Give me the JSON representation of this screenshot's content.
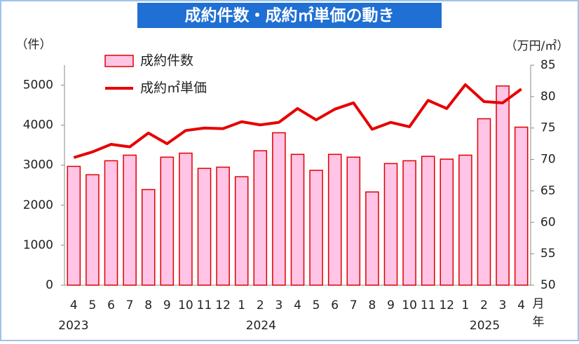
{
  "chart_data": {
    "type": "bar",
    "title": "成約件数・成約㎡単価の動き",
    "y_label": "（件）",
    "y2_label": "（万円/㎡）",
    "x_label_month": "月",
    "x_label_year": "年",
    "categories": [
      "4",
      "5",
      "6",
      "7",
      "8",
      "9",
      "10",
      "11",
      "12",
      "1",
      "2",
      "3",
      "4",
      "5",
      "6",
      "7",
      "8",
      "9",
      "10",
      "11",
      "12",
      "1",
      "2",
      "3",
      "4"
    ],
    "years": [
      "2023",
      null,
      null,
      null,
      null,
      null,
      null,
      null,
      null,
      "2024",
      null,
      null,
      null,
      null,
      null,
      null,
      null,
      null,
      null,
      null,
      null,
      "2025",
      null,
      null,
      null
    ],
    "series": [
      {
        "name": "成約件数",
        "type": "bar",
        "color": "#ffc4e6",
        "edge_color": "#e00000",
        "values": [
          2970,
          2760,
          3110,
          3250,
          2390,
          3200,
          3300,
          2920,
          2950,
          2710,
          3360,
          3810,
          3270,
          2870,
          3270,
          3200,
          2330,
          3040,
          3110,
          3220,
          3150,
          3250,
          4160,
          4980,
          3950
        ]
      },
      {
        "name": "成約㎡単価",
        "type": "line",
        "axis": "y2",
        "color": "#e60000",
        "values": [
          70.3,
          71.2,
          72.4,
          72.0,
          74.2,
          72.5,
          74.6,
          75.0,
          74.9,
          76.0,
          75.5,
          75.9,
          78.1,
          76.3,
          78.0,
          79.0,
          74.8,
          75.9,
          75.2,
          79.4,
          78.1,
          81.9,
          79.2,
          79.0,
          81.2
        ]
      }
    ],
    "ylim": [
      0,
      5500
    ],
    "yticks": [
      0,
      1000,
      2000,
      3000,
      4000,
      5000
    ],
    "y2lim": [
      50,
      85
    ],
    "y2ticks": [
      50,
      55,
      60,
      65,
      70,
      75,
      80,
      85
    ]
  }
}
